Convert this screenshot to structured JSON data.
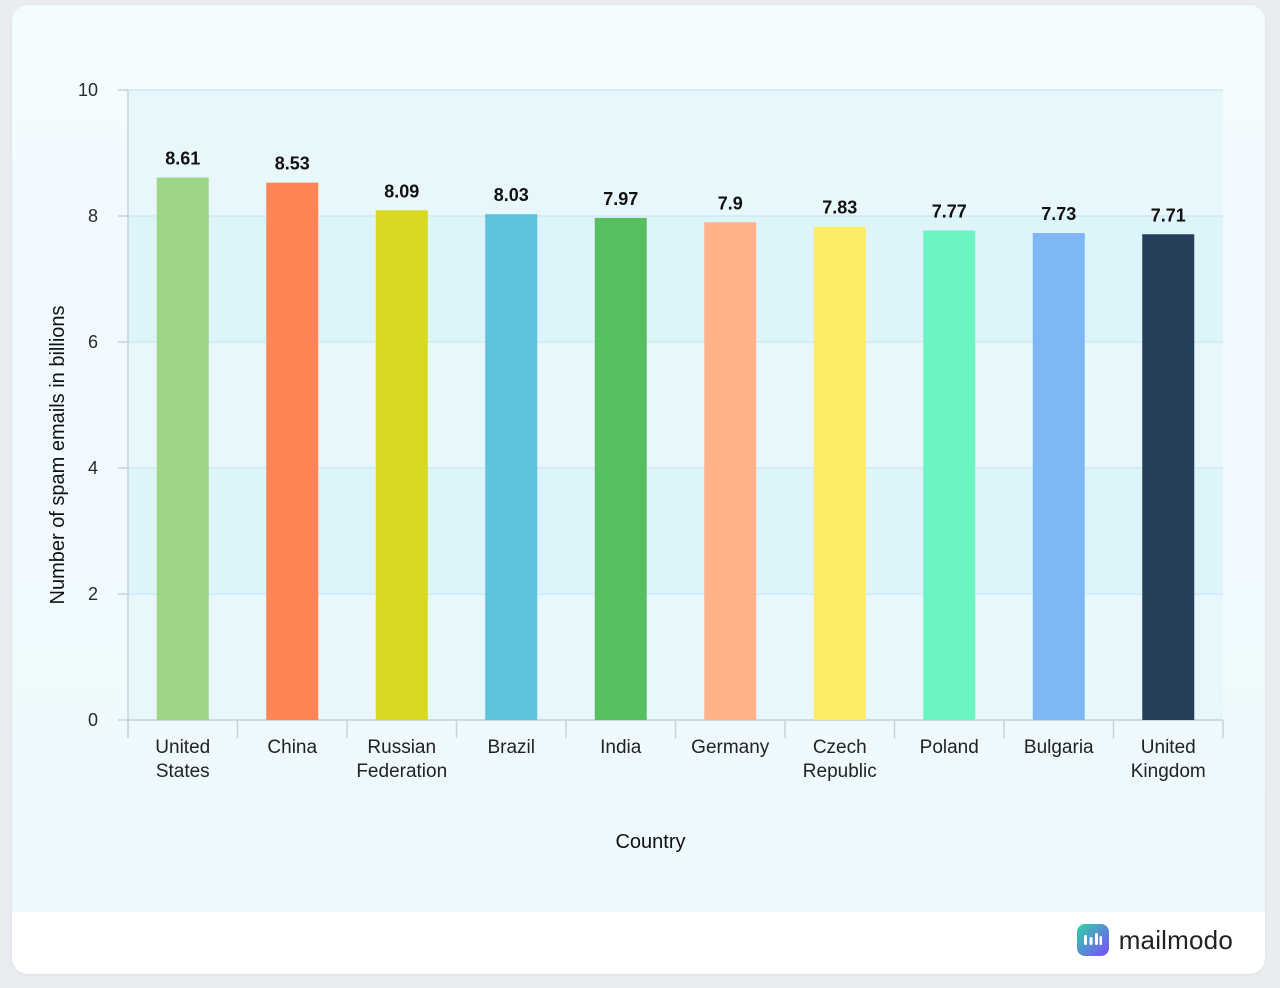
{
  "chart_data": {
    "type": "bar",
    "categories": [
      "United\nStates",
      "China",
      "Russian\nFederation",
      "Brazil",
      "India",
      "Germany",
      "Czech\nRepublic",
      "Poland",
      "Bulgaria",
      "United\nKingdom"
    ],
    "values": [
      8.61,
      8.53,
      8.09,
      8.03,
      7.97,
      7.9,
      7.83,
      7.77,
      7.73,
      7.71
    ],
    "value_labels": [
      "8.61",
      "8.53",
      "8.09",
      "8.03",
      "7.97",
      "7.9",
      "7.83",
      "7.77",
      "7.73",
      "7.71"
    ],
    "colors": [
      "#9ed688",
      "#ff8557",
      "#d8d823",
      "#5bc4da",
      "#57bf61",
      "#ffb28a",
      "#fdeb66",
      "#6cf4c3",
      "#7fb7f6",
      "#253e5a"
    ],
    "xlabel": "Country",
    "ylabel": "Number of spam emails in billions",
    "ylim": [
      0,
      10
    ],
    "yticks": [
      "0",
      "2",
      "4",
      "6",
      "8",
      "10"
    ],
    "grid": true
  },
  "brand": {
    "name": "mailmodo",
    "icon": "mailmodo-logo-icon",
    "colors": [
      "#2fd3a3",
      "#7b4dff"
    ]
  }
}
